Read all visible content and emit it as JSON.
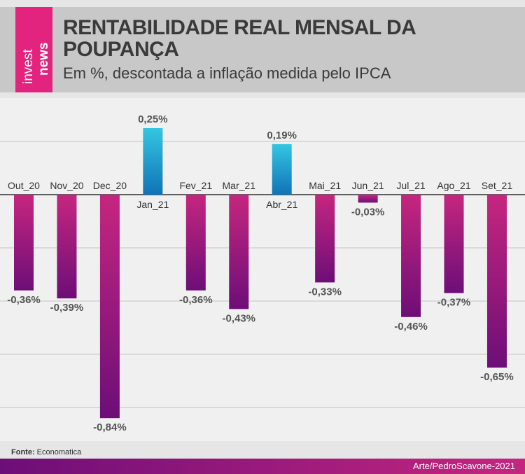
{
  "header": {
    "logo_text": "invest news",
    "title": "RENTABILIDADE REAL MENSAL DA POUPANÇA",
    "subtitle": "Em %, descontada a inflação medida pelo IPCA"
  },
  "chart_data": {
    "type": "bar",
    "title": "RENTABILIDADE REAL MENSAL DA POUPANÇA",
    "subtitle": "Em %, descontada a inflação medida pelo IPCA",
    "categories": [
      "Out_20",
      "Nov_20",
      "Dec_20",
      "Jan_21",
      "Fev_21",
      "Mar_21",
      "Abr_21",
      "Mai_21",
      "Jun_21",
      "Jul_21",
      "Ago_21",
      "Set_21"
    ],
    "values": [
      -0.36,
      -0.39,
      -0.84,
      0.25,
      -0.36,
      -0.43,
      0.19,
      -0.33,
      -0.03,
      -0.46,
      -0.37,
      -0.65
    ],
    "labels": [
      "-0,36%",
      "-0,39%",
      "-0,84%",
      "0,25%",
      "-0,36%",
      "-0,43%",
      "0,19%",
      "-0,33%",
      "-0,03%",
      "-0,46%",
      "-0,37%",
      "-0,65%"
    ],
    "ylim": [
      -0.88,
      0.36
    ],
    "gridlines": [
      0.2,
      -0.2,
      -0.4,
      -0.6,
      -0.8
    ],
    "grid": true,
    "colors": {
      "positive_top": "#35c6e0",
      "positive_bottom": "#0f73b8",
      "negative_top": "#c5267f",
      "negative_bottom": "#6d0e78"
    }
  },
  "footer": {
    "source_label": "Fonte:",
    "source_value": "Economatica",
    "credit": "Arte/PedroScavone-2021"
  }
}
